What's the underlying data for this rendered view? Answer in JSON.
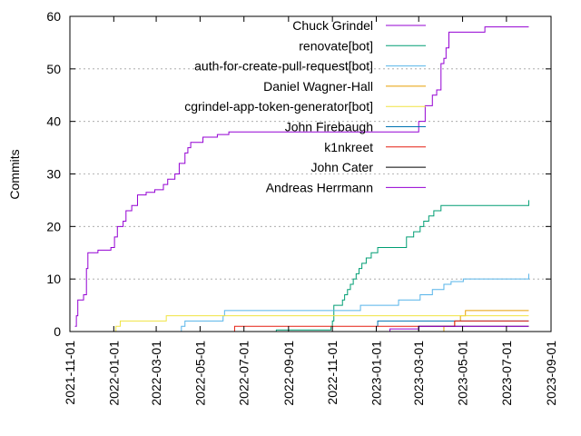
{
  "chart_data": {
    "type": "line",
    "title": "",
    "xlabel": "",
    "ylabel": "Commits",
    "xlim": [
      "2021-11-01",
      "2023-09-01"
    ],
    "ylim": [
      0,
      60
    ],
    "grid": true,
    "legend_position": "top-right",
    "x_tick_labels": [
      "2021-11-01",
      "2022-01-01",
      "2022-03-01",
      "2022-05-01",
      "2022-07-01",
      "2022-09-01",
      "2022-11-01",
      "2023-01-01",
      "2023-03-01",
      "2023-05-01",
      "2023-07-01",
      "2023-09-01"
    ],
    "y_tick_labels": [
      "0",
      "10",
      "20",
      "30",
      "40",
      "50",
      "60"
    ],
    "series": [
      {
        "name": "Chuck Grindel",
        "color": "#9400d3",
        "points": [
          [
            "2021-11-08",
            1
          ],
          [
            "2021-11-10",
            3
          ],
          [
            "2021-11-12",
            6
          ],
          [
            "2021-11-20",
            7
          ],
          [
            "2021-11-24",
            12
          ],
          [
            "2021-11-26",
            15
          ],
          [
            "2021-12-10",
            15.5
          ],
          [
            "2021-12-28",
            16
          ],
          [
            "2022-01-02",
            18
          ],
          [
            "2022-01-06",
            20
          ],
          [
            "2022-01-14",
            21
          ],
          [
            "2022-01-18",
            23
          ],
          [
            "2022-01-26",
            24
          ],
          [
            "2022-02-03",
            26
          ],
          [
            "2022-02-15",
            26.5
          ],
          [
            "2022-02-27",
            27
          ],
          [
            "2022-03-11",
            28
          ],
          [
            "2022-03-17",
            29
          ],
          [
            "2022-03-27",
            30
          ],
          [
            "2022-04-02",
            32
          ],
          [
            "2022-04-10",
            34
          ],
          [
            "2022-04-14",
            35
          ],
          [
            "2022-04-18",
            36
          ],
          [
            "2022-05-05",
            37
          ],
          [
            "2022-05-25",
            37.5
          ],
          [
            "2022-06-10",
            38
          ],
          [
            "2022-10-15",
            38
          ],
          [
            "2022-12-15",
            38
          ],
          [
            "2023-01-15",
            38
          ],
          [
            "2023-02-20",
            38
          ],
          [
            "2023-03-01",
            40
          ],
          [
            "2023-03-10",
            43
          ],
          [
            "2023-03-20",
            45
          ],
          [
            "2023-03-26",
            46
          ],
          [
            "2023-04-01",
            51
          ],
          [
            "2023-04-05",
            52
          ],
          [
            "2023-04-08",
            54
          ],
          [
            "2023-04-12",
            57
          ],
          [
            "2023-05-10",
            57
          ],
          [
            "2023-06-01",
            58
          ],
          [
            "2023-08-01",
            58
          ]
        ]
      },
      {
        "name": "renovate[bot]",
        "color": "#009e73",
        "points": [
          [
            "2022-06-20",
            0
          ],
          [
            "2022-08-15",
            0.3
          ],
          [
            "2022-10-30",
            1
          ],
          [
            "2022-11-01",
            2
          ],
          [
            "2022-11-03",
            5
          ],
          [
            "2022-11-15",
            6
          ],
          [
            "2022-11-18",
            7
          ],
          [
            "2022-11-22",
            8
          ],
          [
            "2022-11-26",
            9
          ],
          [
            "2022-11-30",
            10
          ],
          [
            "2022-12-04",
            11
          ],
          [
            "2022-12-08",
            12
          ],
          [
            "2022-12-12",
            13
          ],
          [
            "2022-12-18",
            14
          ],
          [
            "2022-12-25",
            15
          ],
          [
            "2023-01-03",
            16
          ],
          [
            "2023-02-10",
            16
          ],
          [
            "2023-02-12",
            18
          ],
          [
            "2023-02-22",
            19
          ],
          [
            "2023-03-03",
            20
          ],
          [
            "2023-03-08",
            21
          ],
          [
            "2023-03-15",
            22
          ],
          [
            "2023-03-22",
            23
          ],
          [
            "2023-04-01",
            24
          ],
          [
            "2023-06-15",
            24
          ],
          [
            "2023-08-01",
            25
          ]
        ]
      },
      {
        "name": "auth-for-create-pull-request[bot]",
        "color": "#56b4e9",
        "points": [
          [
            "2022-04-03",
            0
          ],
          [
            "2022-04-05",
            1
          ],
          [
            "2022-04-10",
            2
          ],
          [
            "2022-06-02",
            3
          ],
          [
            "2022-06-04",
            4
          ],
          [
            "2022-11-03",
            4
          ],
          [
            "2022-12-10",
            5
          ],
          [
            "2023-02-01",
            6
          ],
          [
            "2023-03-03",
            7
          ],
          [
            "2023-03-20",
            8
          ],
          [
            "2023-04-05",
            9
          ],
          [
            "2023-04-15",
            9.5
          ],
          [
            "2023-05-02",
            10
          ],
          [
            "2023-07-31",
            10
          ],
          [
            "2023-08-01",
            11
          ]
        ]
      },
      {
        "name": "Daniel Wagner-Hall",
        "color": "#e69f00",
        "points": [
          [
            "2023-04-02",
            0
          ],
          [
            "2023-04-05",
            1
          ],
          [
            "2023-04-20",
            2
          ],
          [
            "2023-04-28",
            3
          ],
          [
            "2023-05-05",
            4
          ],
          [
            "2023-08-01",
            4
          ]
        ]
      },
      {
        "name": "cgrindel-app-token-generator[bot]",
        "color": "#f0e442",
        "points": [
          [
            "2021-12-21",
            0
          ],
          [
            "2022-01-04",
            1
          ],
          [
            "2022-01-10",
            2
          ],
          [
            "2022-03-15",
            3
          ],
          [
            "2023-08-01",
            3
          ]
        ]
      },
      {
        "name": "John Firebaugh",
        "color": "#0072b2",
        "points": [
          [
            "2022-12-21",
            0
          ],
          [
            "2023-01-01",
            1
          ],
          [
            "2023-01-03",
            2
          ],
          [
            "2023-08-01",
            2
          ]
        ]
      },
      {
        "name": "k1nkreet",
        "color": "#e51e10",
        "points": [
          [
            "2022-06-10",
            0
          ],
          [
            "2022-06-18",
            1
          ],
          [
            "2023-04-15",
            1
          ],
          [
            "2023-04-20",
            2
          ],
          [
            "2023-08-01",
            2
          ]
        ]
      },
      {
        "name": "John Cater",
        "color": "#000000",
        "points": [
          [
            "2023-02-01",
            0
          ],
          [
            "2023-03-01",
            1
          ],
          [
            "2023-08-01",
            1
          ]
        ]
      },
      {
        "name": "Andreas Herrmann",
        "color": "#9400d3",
        "points": [
          [
            "2023-01-10",
            0
          ],
          [
            "2023-01-20",
            0.5
          ],
          [
            "2023-03-01",
            1
          ],
          [
            "2023-08-01",
            1
          ]
        ]
      }
    ]
  }
}
